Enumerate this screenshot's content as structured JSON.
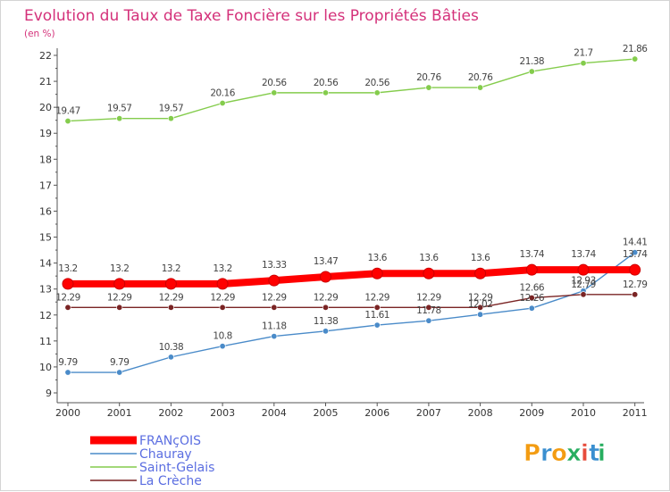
{
  "chart_data": {
    "type": "line",
    "title": "Evolution du Taux de Taxe Foncière sur les Propriétés Bâties",
    "subtitle": "(en %)",
    "xlabel": "",
    "ylabel": "(en %)",
    "ylim": [
      9,
      22
    ],
    "yticks": [
      "9",
      "10",
      "11",
      "12",
      "13",
      "14",
      "15",
      "16",
      "17",
      "18",
      "19",
      "20",
      "21",
      "22"
    ],
    "categories": [
      "2000",
      "2001",
      "2002",
      "2003",
      "2004",
      "2005",
      "2006",
      "2007",
      "2008",
      "2009",
      "2010",
      "2011"
    ],
    "grid": false,
    "legend_position": "bottom-left",
    "series": [
      {
        "name": "FRANçOIS",
        "color": "#ff0000",
        "values": [
          13.2,
          13.2,
          13.2,
          13.2,
          13.33,
          13.47,
          13.6,
          13.6,
          13.6,
          13.74,
          13.74,
          13.74
        ],
        "labels": [
          "13.2",
          "13.2",
          "13.2",
          "13.2",
          "13.33",
          "13.47",
          "13.6",
          "13.6",
          "13.6",
          "13.74",
          "13.74",
          "13.74"
        ]
      },
      {
        "name": "Chauray",
        "color": "#4a8bc9",
        "values": [
          9.79,
          9.79,
          10.38,
          10.8,
          11.18,
          11.38,
          11.61,
          11.78,
          12.02,
          12.26,
          12.93,
          14.41
        ],
        "labels": [
          "9.79",
          "9.79",
          "10.38",
          "10.8",
          "11.18",
          "11.38",
          "11.61",
          "11.78",
          "12.02",
          "12.26",
          "12.93",
          "14.41"
        ]
      },
      {
        "name": "Saint-Gelais",
        "color": "#84cc4c",
        "values": [
          19.47,
          19.57,
          19.57,
          20.16,
          20.56,
          20.56,
          20.56,
          20.76,
          20.76,
          21.38,
          21.7,
          21.86
        ],
        "labels": [
          "19.47",
          "19.57",
          "19.57",
          "20.16",
          "20.56",
          "20.56",
          "20.56",
          "20.76",
          "20.76",
          "21.38",
          "21.7",
          "21.86"
        ]
      },
      {
        "name": "La Crèche",
        "color": "#7a2424",
        "values": [
          12.29,
          12.29,
          12.29,
          12.29,
          12.29,
          12.29,
          12.29,
          12.29,
          12.29,
          12.66,
          12.79,
          12.79
        ],
        "labels": [
          "12.29",
          "12.29",
          "12.29",
          "12.29",
          "12.29",
          "12.29",
          "12.29",
          "12.29",
          "12.29",
          "12.66",
          "12.79",
          "12.79"
        ]
      }
    ]
  },
  "branding": {
    "logo_text": "Proxiti",
    "letters": [
      "P",
      "r",
      "o",
      "x",
      "i",
      "t",
      "i"
    ],
    "letter_colors": [
      "#f39c12",
      "#3a8fd0",
      "#f39c12",
      "#27ae60",
      "#e74c3c",
      "#3a8fd0",
      "#27ae60"
    ]
  },
  "colors": {
    "title": "#d4317a",
    "subtitle": "#d4317a",
    "axis": "#555555",
    "legend_text": "#5b6ee1",
    "tick_text": "#333333"
  }
}
